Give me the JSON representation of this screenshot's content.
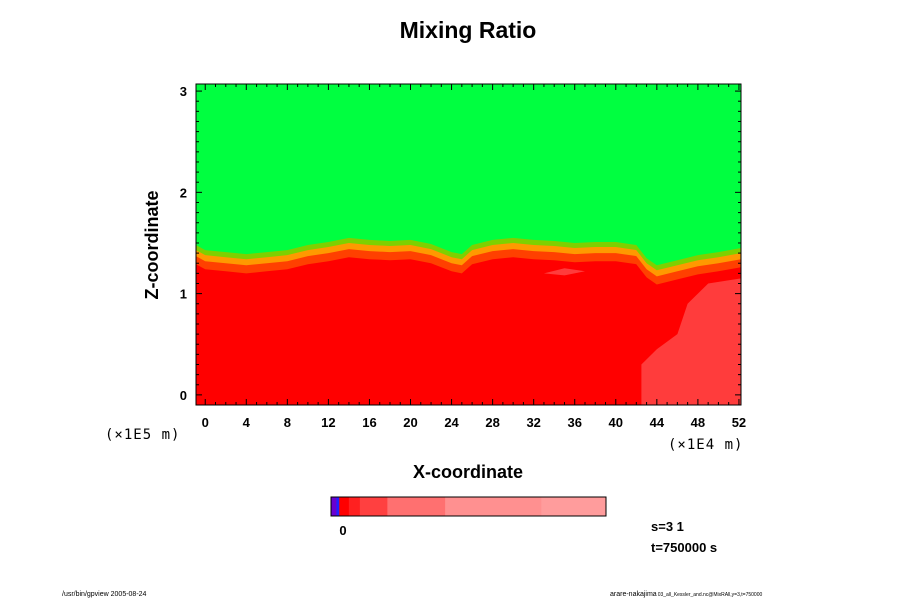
{
  "chart_data": {
    "type": "heatmap",
    "title": "Mixing Ratio",
    "xlabel": "X-coordinate",
    "ylabel": "Z-coordinate",
    "x_unit": "(×1E4 m)",
    "y_unit": "(×1E5 m)",
    "xlim": [
      -0.9,
      52.2
    ],
    "ylim": [
      -0.1,
      3.07
    ],
    "x_ticks": [
      0,
      4,
      8,
      12,
      16,
      20,
      24,
      28,
      32,
      36,
      40,
      44,
      48,
      52
    ],
    "y_ticks": [
      0,
      1,
      2,
      3
    ],
    "colors": {
      "upper": "#00ff40",
      "lower": "#ff0000",
      "transition_1": "#7fd000",
      "transition_2": "#ff9900",
      "transition_3": "#ff4000",
      "light_patch": "#ff5050"
    },
    "interface_height": [
      [
        -0.9,
        1.45
      ],
      [
        0,
        1.4
      ],
      [
        2,
        1.38
      ],
      [
        4,
        1.36
      ],
      [
        6,
        1.38
      ],
      [
        8,
        1.4
      ],
      [
        10,
        1.45
      ],
      [
        12,
        1.48
      ],
      [
        14,
        1.52
      ],
      [
        16,
        1.5
      ],
      [
        18,
        1.49
      ],
      [
        20,
        1.5
      ],
      [
        22,
        1.46
      ],
      [
        24,
        1.38
      ],
      [
        25,
        1.36
      ],
      [
        26,
        1.45
      ],
      [
        28,
        1.5
      ],
      [
        30,
        1.52
      ],
      [
        32,
        1.5
      ],
      [
        34,
        1.49
      ],
      [
        36,
        1.47
      ],
      [
        38,
        1.48
      ],
      [
        40,
        1.48
      ],
      [
        42,
        1.45
      ],
      [
        43,
        1.32
      ],
      [
        44,
        1.25
      ],
      [
        46,
        1.3
      ],
      [
        48,
        1.35
      ],
      [
        50,
        1.38
      ],
      [
        52.2,
        1.42
      ]
    ],
    "colorbar": {
      "zero_label": "0",
      "colors": [
        "#6a00d0",
        "#2020ff",
        "#ff0000",
        "#ff2020",
        "#ff4040",
        "#ff7070",
        "#ff9090",
        "#ff9c9c"
      ],
      "fractions": [
        0.02,
        0.01,
        0.035,
        0.04,
        0.1,
        0.21,
        0.35,
        0.235
      ]
    }
  },
  "info": {
    "step": "s=3 1",
    "time": "t=750000 s"
  },
  "footer": {
    "left": "/usr/bin/gpview 2005-08-24",
    "right_main": "arare-nakajima",
    "right_small": "03_all_Kessler_and.nc@MixRAll,y=3,t=750000"
  }
}
